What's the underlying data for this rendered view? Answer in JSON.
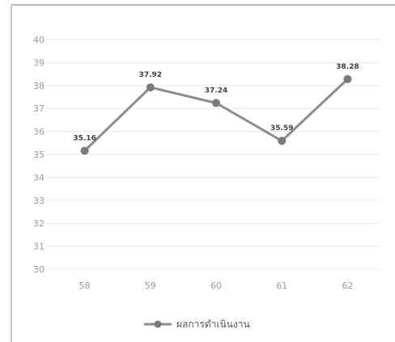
{
  "chart_data": {
    "type": "line",
    "categories": [
      "58",
      "59",
      "60",
      "61",
      "62"
    ],
    "series": [
      {
        "name": "ผลการดำเนินงาน",
        "values": [
          35.16,
          37.92,
          37.24,
          35.59,
          38.28
        ]
      }
    ],
    "data_labels": [
      "35.16",
      "37.92",
      "37.24",
      "35.59",
      "38.28"
    ],
    "y_ticks": [
      "30",
      "31",
      "32",
      "33",
      "34",
      "35",
      "36",
      "37",
      "38",
      "39",
      "40"
    ],
    "ylim": [
      30,
      40
    ],
    "grid": true,
    "legend_position": "bottom",
    "line_color": "#8c8c8c",
    "marker_color": "#7a7a7a",
    "grid_color": "#e9e9e9"
  }
}
